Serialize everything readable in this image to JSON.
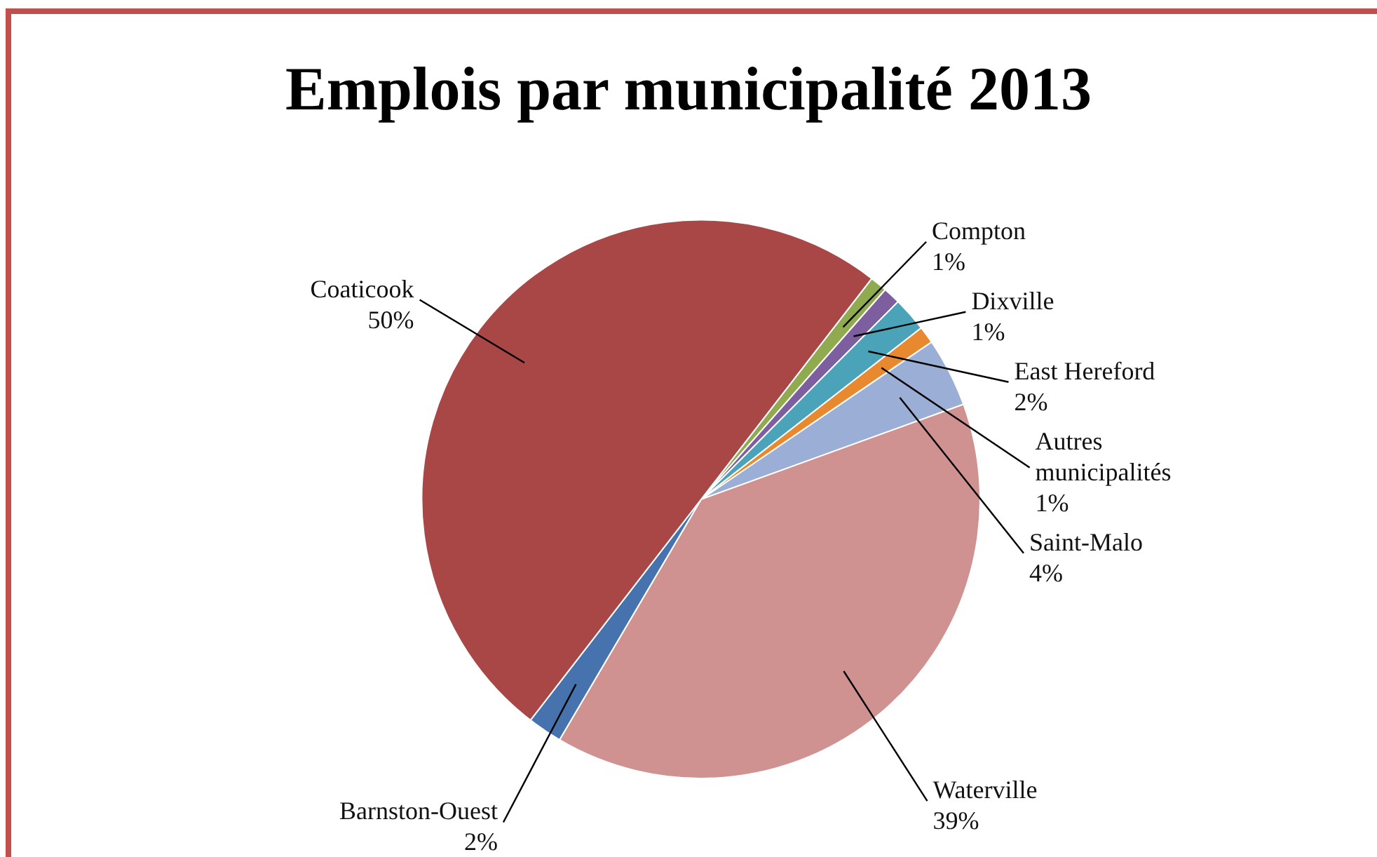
{
  "chart_data": {
    "type": "pie",
    "title": "Emplois par municipalité 2013",
    "categories": [
      "Compton",
      "Dixville",
      "East Hereford",
      "Autres municipalités",
      "Saint-Malo",
      "Waterville",
      "Barnston-Ouest",
      "Coaticook"
    ],
    "values": [
      1,
      1,
      2,
      1,
      4,
      39,
      2,
      50
    ],
    "colors": [
      "#8faa4f",
      "#7d5fa0",
      "#4aa3b8",
      "#e8892f",
      "#9aaed6",
      "#d09191",
      "#4673ae",
      "#a84745"
    ],
    "value_labels": [
      "1%",
      "1%",
      "2%",
      "1%",
      "4%",
      "39%",
      "2%",
      "50%"
    ]
  }
}
